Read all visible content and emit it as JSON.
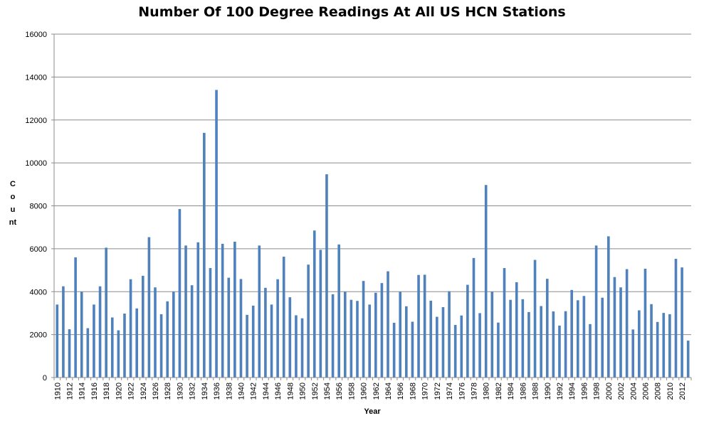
{
  "chart_data": {
    "type": "bar",
    "title": "Number Of 100 Degree Readings At All US HCN Stations",
    "xlabel": "Year",
    "ylabel": "Count",
    "ylim": [
      0,
      16000
    ],
    "yticks": [
      0,
      2000,
      4000,
      6000,
      8000,
      10000,
      12000,
      14000,
      16000
    ],
    "grid": true,
    "legend": "none",
    "bar_color": "#4f81bd",
    "x": [
      1910,
      1911,
      1912,
      1913,
      1914,
      1915,
      1916,
      1917,
      1918,
      1919,
      1920,
      1921,
      1922,
      1923,
      1924,
      1925,
      1926,
      1927,
      1928,
      1929,
      1930,
      1931,
      1932,
      1933,
      1934,
      1935,
      1936,
      1937,
      1938,
      1939,
      1940,
      1941,
      1942,
      1943,
      1944,
      1945,
      1946,
      1947,
      1948,
      1949,
      1950,
      1951,
      1952,
      1953,
      1954,
      1955,
      1956,
      1957,
      1958,
      1959,
      1960,
      1961,
      1962,
      1963,
      1964,
      1965,
      1966,
      1967,
      1968,
      1969,
      1970,
      1971,
      1972,
      1973,
      1974,
      1975,
      1976,
      1977,
      1978,
      1979,
      1980,
      1981,
      1982,
      1983,
      1984,
      1985,
      1986,
      1987,
      1988,
      1989,
      1990,
      1991,
      1992,
      1993,
      1994,
      1995,
      1996,
      1997,
      1998,
      1999,
      2000,
      2001,
      2002,
      2003,
      2004,
      2005,
      2006,
      2007,
      2008,
      2009,
      2010,
      2011,
      2012,
      2013
    ],
    "x_tick_labels": [
      "1910",
      "1912",
      "1914",
      "1916",
      "1918",
      "1920",
      "1922",
      "1924",
      "1926",
      "1928",
      "1930",
      "1932",
      "1934",
      "1936",
      "1938",
      "1940",
      "1942",
      "1944",
      "1946",
      "1948",
      "1950",
      "1952",
      "1954",
      "1956",
      "1958",
      "1960",
      "1962",
      "1964",
      "1966",
      "1968",
      "1970",
      "1972",
      "1974",
      "1976",
      "1978",
      "1980",
      "1982",
      "1984",
      "1986",
      "1988",
      "1990",
      "1992",
      "1994",
      "1996",
      "1998",
      "2000",
      "2002",
      "2004",
      "2006",
      "2008",
      "2010",
      "2012"
    ],
    "values": [
      3400,
      4250,
      2250,
      5600,
      4000,
      2300,
      3400,
      4250,
      6050,
      2800,
      2200,
      2980,
      4580,
      3220,
      4740,
      6540,
      4200,
      2950,
      3550,
      4000,
      7850,
      6150,
      4300,
      6300,
      11400,
      5100,
      13400,
      6230,
      4650,
      6330,
      4590,
      2920,
      3350,
      6150,
      4180,
      3400,
      4580,
      5630,
      3740,
      2900,
      2760,
      5260,
      6850,
      5950,
      9470,
      3880,
      6200,
      4000,
      3620,
      3570,
      4500,
      3400,
      3950,
      4400,
      4950,
      2550,
      4000,
      3320,
      2600,
      4780,
      4790,
      3580,
      2830,
      3280,
      4020,
      2450,
      2890,
      4320,
      5570,
      3000,
      8970,
      4000,
      2560,
      5100,
      3620,
      4440,
      3650,
      3050,
      5480,
      3330,
      4600,
      3080,
      2420,
      3090,
      4080,
      3600,
      3800,
      2490,
      6150,
      3720,
      6580,
      4680,
      4200,
      5050,
      2240,
      3130,
      5070,
      3420,
      2590,
      3010,
      2950,
      5530,
      5130,
      1720
    ]
  }
}
